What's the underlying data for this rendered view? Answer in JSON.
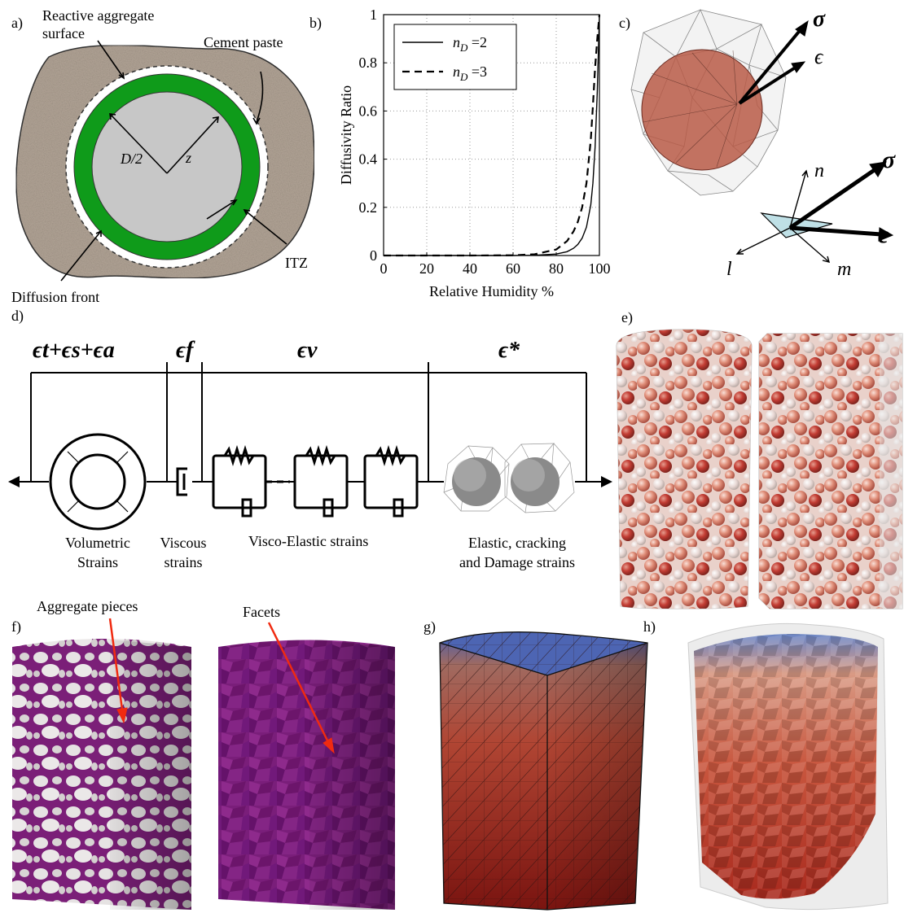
{
  "panels": {
    "a": {
      "tag": "a)",
      "reactive_surface": "Reactive aggregate\nsurface",
      "cement_paste": "Cement paste",
      "d_half": "D/2",
      "z": "z",
      "itz": "ITZ",
      "diffusion_front": "Diffusion front"
    },
    "b": {
      "tag": "b)"
    },
    "c": {
      "tag": "c)",
      "sigma": "σ",
      "eps": "ϵ",
      "n": "n",
      "l": "l",
      "m": "m"
    },
    "d": {
      "tag": "d)",
      "eps_total": "ϵt+ϵs+ϵa",
      "eps_f": "ϵf",
      "eps_v": "ϵv",
      "eps_star": "ϵ*",
      "volumetric": "Volumetric\nStrains",
      "viscous": "Viscous\nstrains",
      "viscoelastic": "Visco-Elastic strains",
      "elastic": "Elastic, cracking\nand Damage strains"
    },
    "e": {
      "tag": "e)"
    },
    "f": {
      "tag": "f)",
      "aggregate_pieces": "Aggregate pieces",
      "facets": "Facets"
    },
    "g": {
      "tag": "g)"
    },
    "h": {
      "tag": "h)"
    }
  },
  "chart_data": {
    "type": "line",
    "xlabel": "Relative Humidity %",
    "ylabel": "Diffusivity Ratio",
    "xlim": [
      0,
      100
    ],
    "ylim": [
      0,
      1
    ],
    "xticks": [
      0,
      20,
      40,
      60,
      80,
      100
    ],
    "yticks": [
      0,
      0.2,
      0.4,
      0.6,
      0.8,
      1
    ],
    "grid": true,
    "legend_position": "top-left",
    "x": [
      0,
      20,
      40,
      60,
      70,
      80,
      85,
      88,
      90,
      92,
      94,
      96,
      97,
      98,
      99,
      100
    ],
    "series": [
      {
        "name": "nD =2",
        "style": "solid",
        "values": [
          0,
          0,
          0,
          0,
          0.001,
          0.006,
          0.016,
          0.03,
          0.046,
          0.072,
          0.118,
          0.21,
          0.3,
          0.45,
          0.68,
          1.0
        ]
      },
      {
        "name": "nD =3",
        "style": "dashed",
        "values": [
          0,
          0,
          0,
          0.001,
          0.005,
          0.025,
          0.06,
          0.1,
          0.14,
          0.2,
          0.3,
          0.48,
          0.62,
          0.78,
          0.9,
          1.0
        ]
      }
    ],
    "legend": [
      {
        "label_main": "n",
        "label_sub": "D",
        "label_rest": " =2",
        "style": "solid"
      },
      {
        "label_main": "n",
        "label_sub": "D",
        "label_rest": " =3",
        "style": "dashed"
      }
    ]
  },
  "colors": {
    "paste": "#b3a597",
    "aggregate": "#c7c7c7",
    "ring": "#0f9b1a",
    "purple": "#7d1f7a",
    "red": "#b83a2c",
    "blue": "#4b64b0"
  }
}
